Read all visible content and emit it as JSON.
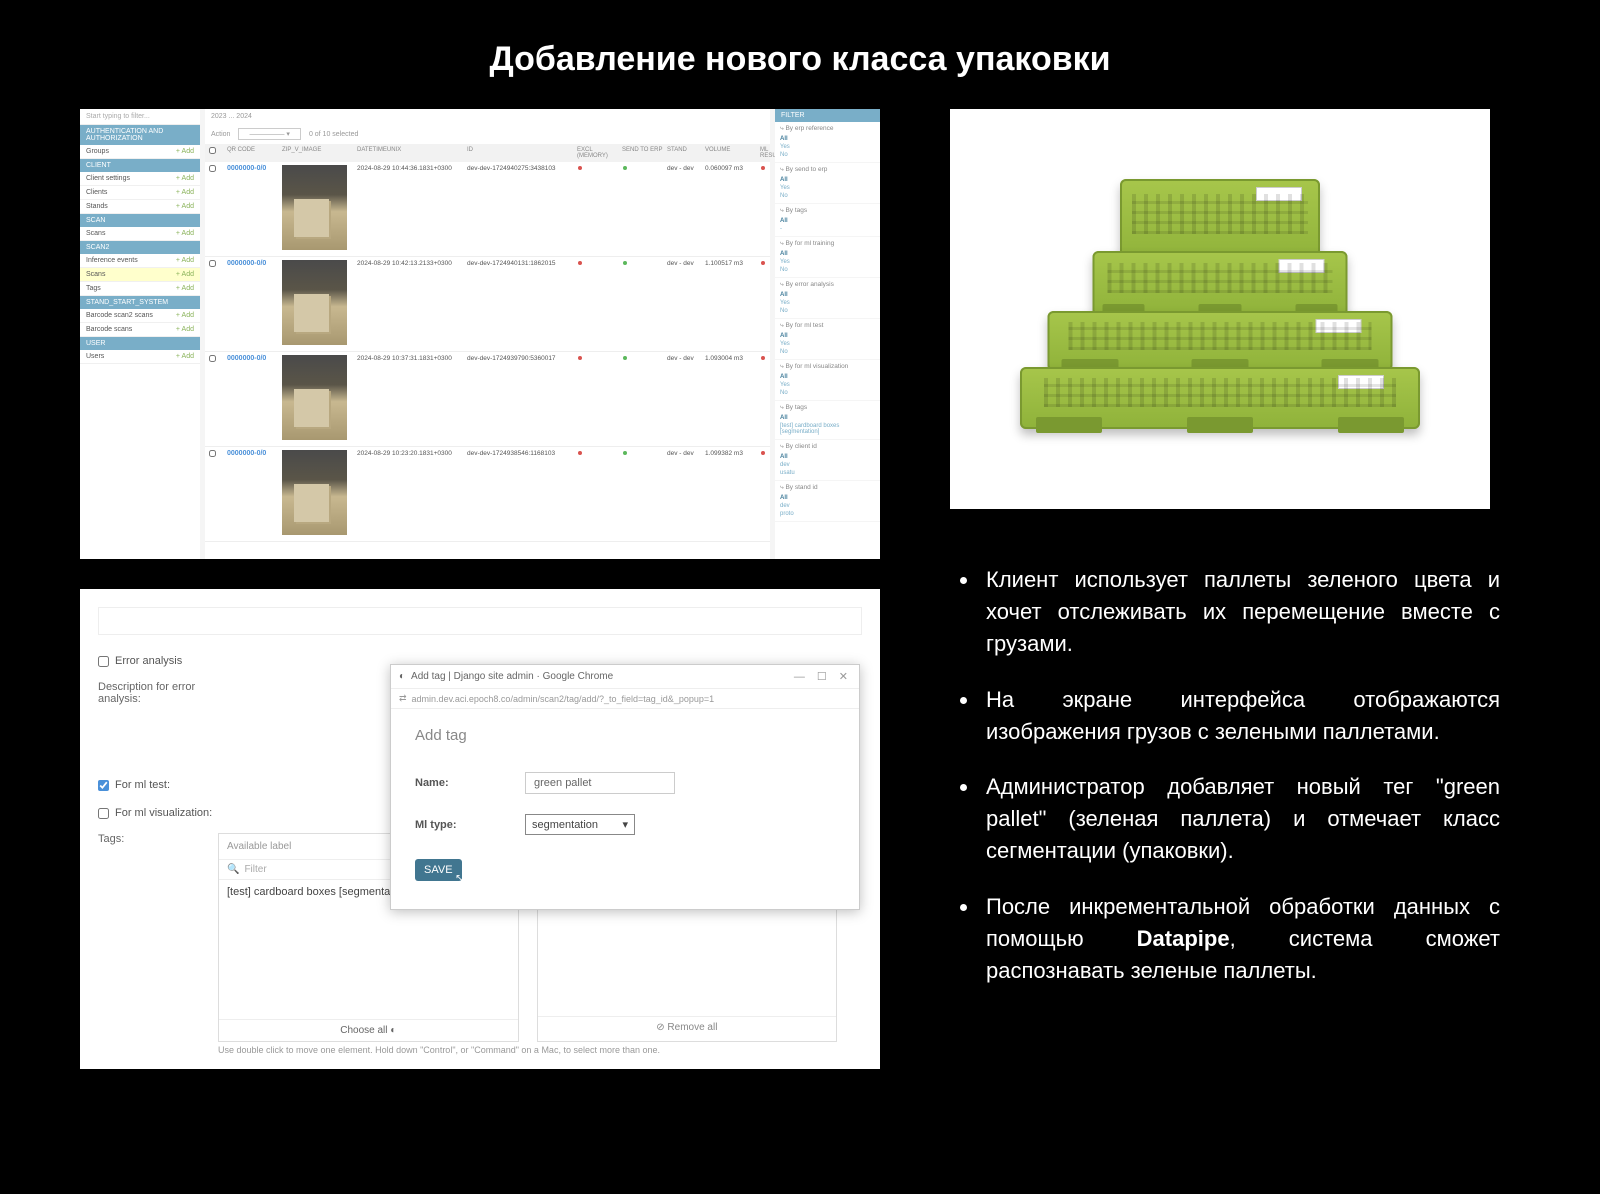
{
  "slide": {
    "title": "Добавление нового класса упаковки"
  },
  "bullets": {
    "b1": "Клиент использует паллеты зеленого цвета и хочет отслеживать их перемещение вместе с грузами.",
    "b2": "На экране интерфейса отображаются изображения грузов с зелеными паллетами.",
    "b3_pre": "Администратор добавляет новый тег \"green pallet\" (зеленая паллета) и отмечает класс сегментации (упаковки).",
    "b4_a": "После инкрементальной обработки данных с помощью ",
    "b4_b": "Datapipe",
    "b4_c": ", система сможет распознавать зеленые паллеты."
  },
  "adminList": {
    "search_placeholder": "Start typing to filter...",
    "sections": {
      "auth": "AUTHENTICATION AND AUTHORIZATION",
      "auth_items": {
        "groups": "Groups"
      },
      "client": "CLIENT",
      "client_items": {
        "settings": "Client settings",
        "clients": "Clients",
        "stands": "Stands"
      },
      "scan": "SCAN",
      "scan_items": {
        "scans": "Scans"
      },
      "scan2": "SCAN2",
      "scan2_items": {
        "inference": "Inference events",
        "scans": "Scans",
        "tags": "Tags"
      },
      "stand": "STAND_START_SYSTEM",
      "stand_items": {
        "events": "Barcode scan2 scans",
        "scans": "Barcode scans"
      },
      "user": "USER",
      "user_items": {
        "users": "Users"
      }
    },
    "add": "+ Add",
    "toolbar": {
      "range": "2023 ... 2024",
      "action": "Action",
      "selected": "0 of 10 selected"
    },
    "headers": {
      "qr": "QR CODE",
      "img": "ZIP_V_IMAGE",
      "dt": "DATETIMEUNIX",
      "id": "ID",
      "excl": "EXCL (MEMORY)",
      "send": "SEND TO ERP",
      "stand": "STAND",
      "vol": "VOLUME",
      "ml": "ML RESUME"
    },
    "rows": [
      {
        "qr": "0000000-0/0",
        "dt": "2024-08-29 10:44:36.1831+0300",
        "id": "dev-dev-1724940275:3438103",
        "stand": "dev - dev",
        "vol": "0.060097 m3"
      },
      {
        "qr": "0000000-0/0",
        "dt": "2024-08-29 10:42:13.2133+0300",
        "id": "dev-dev-1724940131:1862015",
        "stand": "dev - dev",
        "vol": "1.100517 m3"
      },
      {
        "qr": "0000000-0/0",
        "dt": "2024-08-29 10:37:31.1831+0300",
        "id": "dev-dev-1724939790:5360017",
        "stand": "dev - dev",
        "vol": "1.093004 m3"
      },
      {
        "qr": "0000000-0/0",
        "dt": "2024-08-29 10:23:20.1831+0300",
        "id": "dev-dev-1724938546:1168103",
        "stand": "dev - dev",
        "vol": "1.099382 m3"
      }
    ],
    "filter": {
      "header": "FILTER",
      "groups": [
        {
          "title": "⤷ By erp reference",
          "opts": [
            "All",
            "Yes",
            "No"
          ]
        },
        {
          "title": "⤷ By send to erp",
          "opts": [
            "All",
            "Yes",
            "No"
          ]
        },
        {
          "title": "⤷ By tags",
          "opts": [
            "All",
            "-"
          ]
        },
        {
          "title": "⤷ By for ml training",
          "opts": [
            "All",
            "Yes",
            "No"
          ]
        },
        {
          "title": "⤷ By error analysis",
          "opts": [
            "All",
            "Yes",
            "No"
          ]
        },
        {
          "title": "⤷ By for ml test",
          "opts": [
            "All",
            "Yes",
            "No"
          ]
        },
        {
          "title": "⤷ By for ml visualization",
          "opts": [
            "All",
            "Yes",
            "No"
          ]
        },
        {
          "title": "⤷ By tags",
          "opts": [
            "All",
            "[test] cardboard boxes [segmentation]"
          ]
        },
        {
          "title": "⤷ By client id",
          "opts": [
            "All",
            "dev",
            "usatu"
          ]
        },
        {
          "title": "⤷ By stand id",
          "opts": [
            "All",
            "dev",
            "proto"
          ]
        }
      ]
    }
  },
  "adminForm": {
    "error_analysis": "Error analysis",
    "desc_label": "Description for error analysis:",
    "for_ml_test": "For ml test:",
    "for_ml_viz": "For ml visualization:",
    "tags_label": "Tags:",
    "available": "Available label",
    "filter": "Filter",
    "item": "[test] cardboard boxes [segmentation]",
    "choose_all": "Choose all",
    "remove_all": "⊘ Remove all",
    "hint": "Use double click to move one element. Hold down \"Control\", or \"Command\" on a Mac, to select more than one."
  },
  "popup": {
    "title": "Add tag | Django site admin · Google Chrome",
    "url": "admin.dev.aci.epoch8.co/admin/scan2/tag/add/?_to_field=tag_id&_popup=1",
    "heading": "Add tag",
    "name_label": "Name:",
    "name_value": "green pallet",
    "mltype_label": "Ml type:",
    "mltype_value": "segmentation",
    "save": "SAVE"
  },
  "colors": {
    "django_blue": "#79aec8",
    "django_dark": "#417690",
    "pallet_green_light": "#a7c64b",
    "pallet_green_dark": "#8fb23a"
  }
}
